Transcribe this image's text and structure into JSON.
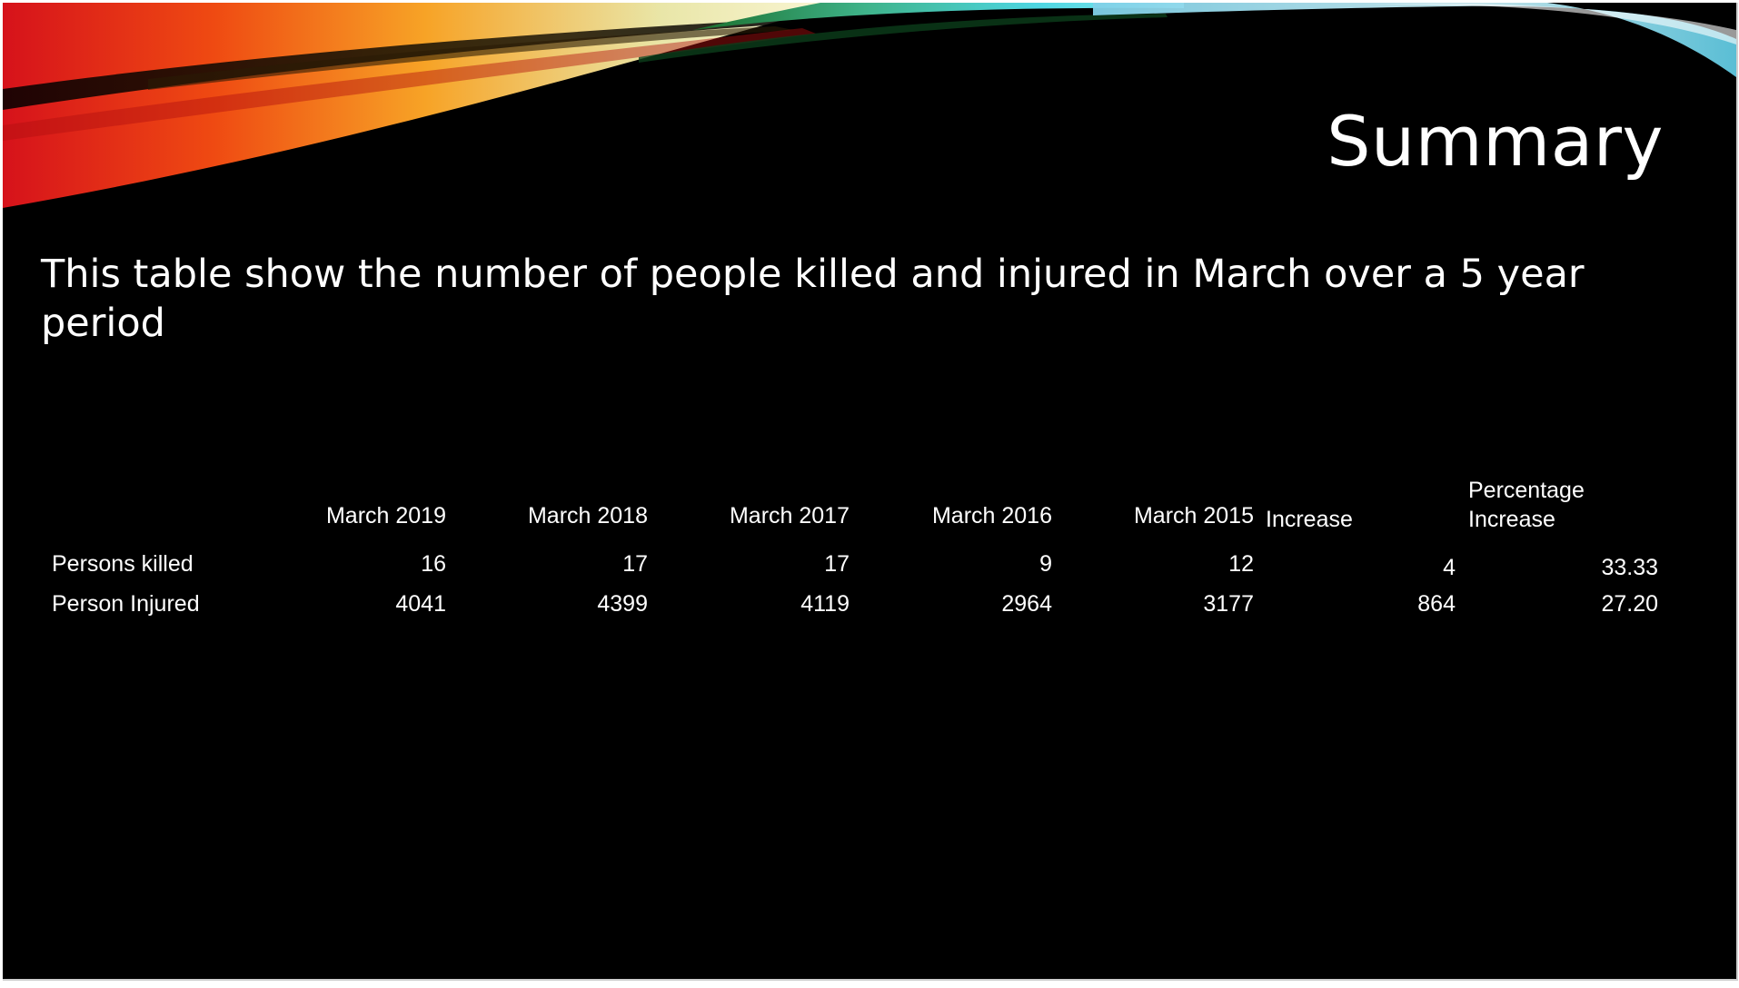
{
  "slide": {
    "title": "Summary",
    "subtitle": "This table show the number of people killed and injured in March over a 5 year period"
  },
  "table": {
    "headers": [
      "March 2019",
      "March 2018",
      "March 2017",
      "March 2016",
      "March 2015",
      "Increase",
      "Percentage Increase"
    ],
    "header_pct_line1": "Percentage",
    "header_pct_line2": "Increase",
    "rows": [
      {
        "label": "Persons killed",
        "values": [
          "16",
          "17",
          "17",
          "9",
          "12",
          "4",
          "33.33"
        ]
      },
      {
        "label": "Person Injured",
        "values": [
          "4041",
          "4399",
          "4119",
          "2964",
          "3177",
          "864",
          "27.20"
        ]
      }
    ]
  }
}
